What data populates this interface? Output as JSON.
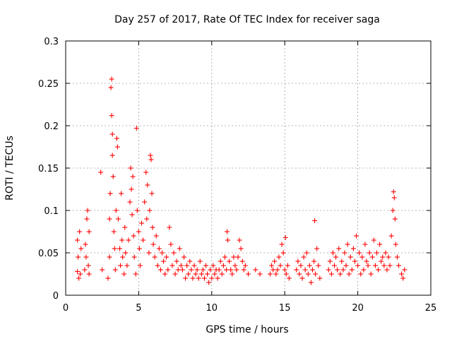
{
  "chart_data": {
    "type": "scatter",
    "title": "Day 257 of 2017, Rate Of TEC Index for receiver saga",
    "xlabel": "GPS time / hours",
    "ylabel": "ROTI / TECUs",
    "xlim": [
      0,
      25
    ],
    "ylim": [
      0,
      0.3
    ],
    "x_ticks": [
      0,
      5,
      10,
      15,
      20,
      25
    ],
    "y_ticks": [
      0,
      0.05,
      0.1,
      0.15,
      0.2,
      0.25,
      0.3
    ],
    "x_tick_labels": [
      "0",
      "5",
      "10",
      "15",
      "20",
      "25"
    ],
    "y_tick_labels": [
      "0",
      "0.05",
      "0.1",
      "0.15",
      "0.2",
      "0.25",
      "0.3"
    ],
    "grid": true,
    "marker": "+",
    "color": "#ff0000",
    "series": [
      {
        "name": "saga",
        "points": [
          [
            0.8,
            0.028
          ],
          [
            0.8,
            0.065
          ],
          [
            0.85,
            0.045
          ],
          [
            0.9,
            0.02
          ],
          [
            0.95,
            0.075
          ],
          [
            1.0,
            0.025
          ],
          [
            1.05,
            0.055
          ],
          [
            1.3,
            0.03
          ],
          [
            1.35,
            0.06
          ],
          [
            1.4,
            0.045
          ],
          [
            1.45,
            0.09
          ],
          [
            1.5,
            0.1
          ],
          [
            1.55,
            0.035
          ],
          [
            1.6,
            0.075
          ],
          [
            1.6,
            0.025
          ],
          [
            2.4,
            0.145
          ],
          [
            2.5,
            0.03
          ],
          [
            2.9,
            0.02
          ],
          [
            3.0,
            0.045
          ],
          [
            3.0,
            0.09
          ],
          [
            3.05,
            0.12
          ],
          [
            3.1,
            0.245
          ],
          [
            3.15,
            0.255
          ],
          [
            3.15,
            0.212
          ],
          [
            3.2,
            0.19
          ],
          [
            3.2,
            0.165
          ],
          [
            3.25,
            0.14
          ],
          [
            3.3,
            0.075
          ],
          [
            3.35,
            0.055
          ],
          [
            3.4,
            0.03
          ],
          [
            3.45,
            0.1
          ],
          [
            3.5,
            0.185
          ],
          [
            3.55,
            0.175
          ],
          [
            3.6,
            0.09
          ],
          [
            3.7,
            0.055
          ],
          [
            3.75,
            0.035
          ],
          [
            3.8,
            0.12
          ],
          [
            3.85,
            0.065
          ],
          [
            3.9,
            0.045
          ],
          [
            4.0,
            0.025
          ],
          [
            4.05,
            0.08
          ],
          [
            4.1,
            0.05
          ],
          [
            4.2,
            0.035
          ],
          [
            4.3,
            0.065
          ],
          [
            4.4,
            0.11
          ],
          [
            4.45,
            0.15
          ],
          [
            4.5,
            0.125
          ],
          [
            4.55,
            0.095
          ],
          [
            4.6,
            0.14
          ],
          [
            4.65,
            0.07
          ],
          [
            4.7,
            0.045
          ],
          [
            4.8,
            0.025
          ],
          [
            4.85,
            0.197
          ],
          [
            4.9,
            0.1
          ],
          [
            5.0,
            0.075
          ],
          [
            5.05,
            0.055
          ],
          [
            5.1,
            0.035
          ],
          [
            5.2,
            0.085
          ],
          [
            5.3,
            0.065
          ],
          [
            5.4,
            0.11
          ],
          [
            5.5,
            0.145
          ],
          [
            5.55,
            0.09
          ],
          [
            5.6,
            0.13
          ],
          [
            5.7,
            0.05
          ],
          [
            5.75,
            0.1
          ],
          [
            5.8,
            0.165
          ],
          [
            5.85,
            0.16
          ],
          [
            5.9,
            0.12
          ],
          [
            5.95,
            0.08
          ],
          [
            6.0,
            0.06
          ],
          [
            6.1,
            0.045
          ],
          [
            6.2,
            0.07
          ],
          [
            6.3,
            0.035
          ],
          [
            6.4,
            0.055
          ],
          [
            6.5,
            0.03
          ],
          [
            6.6,
            0.05
          ],
          [
            6.7,
            0.04
          ],
          [
            6.8,
            0.025
          ],
          [
            6.9,
            0.045
          ],
          [
            7.0,
            0.03
          ],
          [
            7.1,
            0.08
          ],
          [
            7.2,
            0.06
          ],
          [
            7.3,
            0.035
          ],
          [
            7.4,
            0.05
          ],
          [
            7.5,
            0.025
          ],
          [
            7.6,
            0.04
          ],
          [
            7.7,
            0.03
          ],
          [
            7.8,
            0.055
          ],
          [
            7.9,
            0.035
          ],
          [
            8.0,
            0.03
          ],
          [
            8.1,
            0.045
          ],
          [
            8.2,
            0.02
          ],
          [
            8.3,
            0.035
          ],
          [
            8.4,
            0.025
          ],
          [
            8.5,
            0.04
          ],
          [
            8.6,
            0.03
          ],
          [
            8.7,
            0.02
          ],
          [
            8.8,
            0.035
          ],
          [
            8.9,
            0.025
          ],
          [
            9.0,
            0.03
          ],
          [
            9.1,
            0.02
          ],
          [
            9.2,
            0.04
          ],
          [
            9.3,
            0.025
          ],
          [
            9.4,
            0.03
          ],
          [
            9.5,
            0.02
          ],
          [
            9.6,
            0.035
          ],
          [
            9.7,
            0.025
          ],
          [
            9.8,
            0.015
          ],
          [
            9.9,
            0.03
          ],
          [
            10.0,
            0.02
          ],
          [
            10.1,
            0.035
          ],
          [
            10.2,
            0.025
          ],
          [
            10.3,
            0.03
          ],
          [
            10.4,
            0.02
          ],
          [
            10.5,
            0.03
          ],
          [
            10.6,
            0.04
          ],
          [
            10.7,
            0.025
          ],
          [
            10.8,
            0.035
          ],
          [
            10.9,
            0.045
          ],
          [
            11.0,
            0.03
          ],
          [
            11.05,
            0.075
          ],
          [
            11.1,
            0.065
          ],
          [
            11.2,
            0.04
          ],
          [
            11.3,
            0.03
          ],
          [
            11.4,
            0.025
          ],
          [
            11.5,
            0.045
          ],
          [
            11.6,
            0.035
          ],
          [
            11.7,
            0.03
          ],
          [
            11.8,
            0.045
          ],
          [
            11.9,
            0.065
          ],
          [
            12.0,
            0.055
          ],
          [
            12.1,
            0.04
          ],
          [
            12.2,
            0.03
          ],
          [
            12.3,
            0.035
          ],
          [
            12.5,
            0.025
          ],
          [
            13.0,
            0.03
          ],
          [
            13.3,
            0.025
          ],
          [
            14.0,
            0.025
          ],
          [
            14.1,
            0.035
          ],
          [
            14.2,
            0.03
          ],
          [
            14.3,
            0.04
          ],
          [
            14.4,
            0.025
          ],
          [
            14.5,
            0.03
          ],
          [
            14.6,
            0.045
          ],
          [
            14.7,
            0.035
          ],
          [
            14.8,
            0.06
          ],
          [
            14.9,
            0.05
          ],
          [
            15.0,
            0.03
          ],
          [
            15.05,
            0.068
          ],
          [
            15.1,
            0.025
          ],
          [
            15.2,
            0.035
          ],
          [
            15.3,
            0.02
          ],
          [
            15.8,
            0.03
          ],
          [
            15.9,
            0.04
          ],
          [
            16.0,
            0.025
          ],
          [
            16.1,
            0.035
          ],
          [
            16.2,
            0.02
          ],
          [
            16.3,
            0.045
          ],
          [
            16.4,
            0.03
          ],
          [
            16.5,
            0.05
          ],
          [
            16.6,
            0.025
          ],
          [
            16.7,
            0.035
          ],
          [
            16.8,
            0.015
          ],
          [
            16.9,
            0.03
          ],
          [
            17.0,
            0.04
          ],
          [
            17.05,
            0.088
          ],
          [
            17.1,
            0.025
          ],
          [
            17.2,
            0.055
          ],
          [
            17.3,
            0.035
          ],
          [
            17.4,
            0.02
          ],
          [
            18.0,
            0.03
          ],
          [
            18.1,
            0.04
          ],
          [
            18.2,
            0.025
          ],
          [
            18.3,
            0.05
          ],
          [
            18.4,
            0.035
          ],
          [
            18.5,
            0.045
          ],
          [
            18.6,
            0.03
          ],
          [
            18.7,
            0.055
          ],
          [
            18.8,
            0.025
          ],
          [
            18.9,
            0.04
          ],
          [
            19.0,
            0.03
          ],
          [
            19.1,
            0.05
          ],
          [
            19.2,
            0.035
          ],
          [
            19.3,
            0.06
          ],
          [
            19.4,
            0.025
          ],
          [
            19.5,
            0.045
          ],
          [
            19.6,
            0.03
          ],
          [
            19.7,
            0.055
          ],
          [
            19.8,
            0.04
          ],
          [
            19.9,
            0.07
          ],
          [
            20.0,
            0.035
          ],
          [
            20.1,
            0.05
          ],
          [
            20.2,
            0.025
          ],
          [
            20.3,
            0.045
          ],
          [
            20.4,
            0.03
          ],
          [
            20.5,
            0.06
          ],
          [
            20.6,
            0.04
          ],
          [
            20.7,
            0.035
          ],
          [
            20.8,
            0.05
          ],
          [
            20.9,
            0.025
          ],
          [
            21.0,
            0.045
          ],
          [
            21.1,
            0.065
          ],
          [
            21.2,
            0.035
          ],
          [
            21.3,
            0.05
          ],
          [
            21.4,
            0.03
          ],
          [
            21.5,
            0.06
          ],
          [
            21.6,
            0.04
          ],
          [
            21.7,
            0.045
          ],
          [
            21.8,
            0.035
          ],
          [
            21.9,
            0.05
          ],
          [
            22.0,
            0.03
          ],
          [
            22.1,
            0.045
          ],
          [
            22.2,
            0.035
          ],
          [
            22.3,
            0.07
          ],
          [
            22.4,
            0.1
          ],
          [
            22.45,
            0.122
          ],
          [
            22.5,
            0.115
          ],
          [
            22.55,
            0.09
          ],
          [
            22.6,
            0.06
          ],
          [
            22.7,
            0.045
          ],
          [
            22.8,
            0.035
          ],
          [
            23.0,
            0.025
          ],
          [
            23.1,
            0.02
          ],
          [
            23.2,
            0.03
          ]
        ]
      }
    ]
  }
}
